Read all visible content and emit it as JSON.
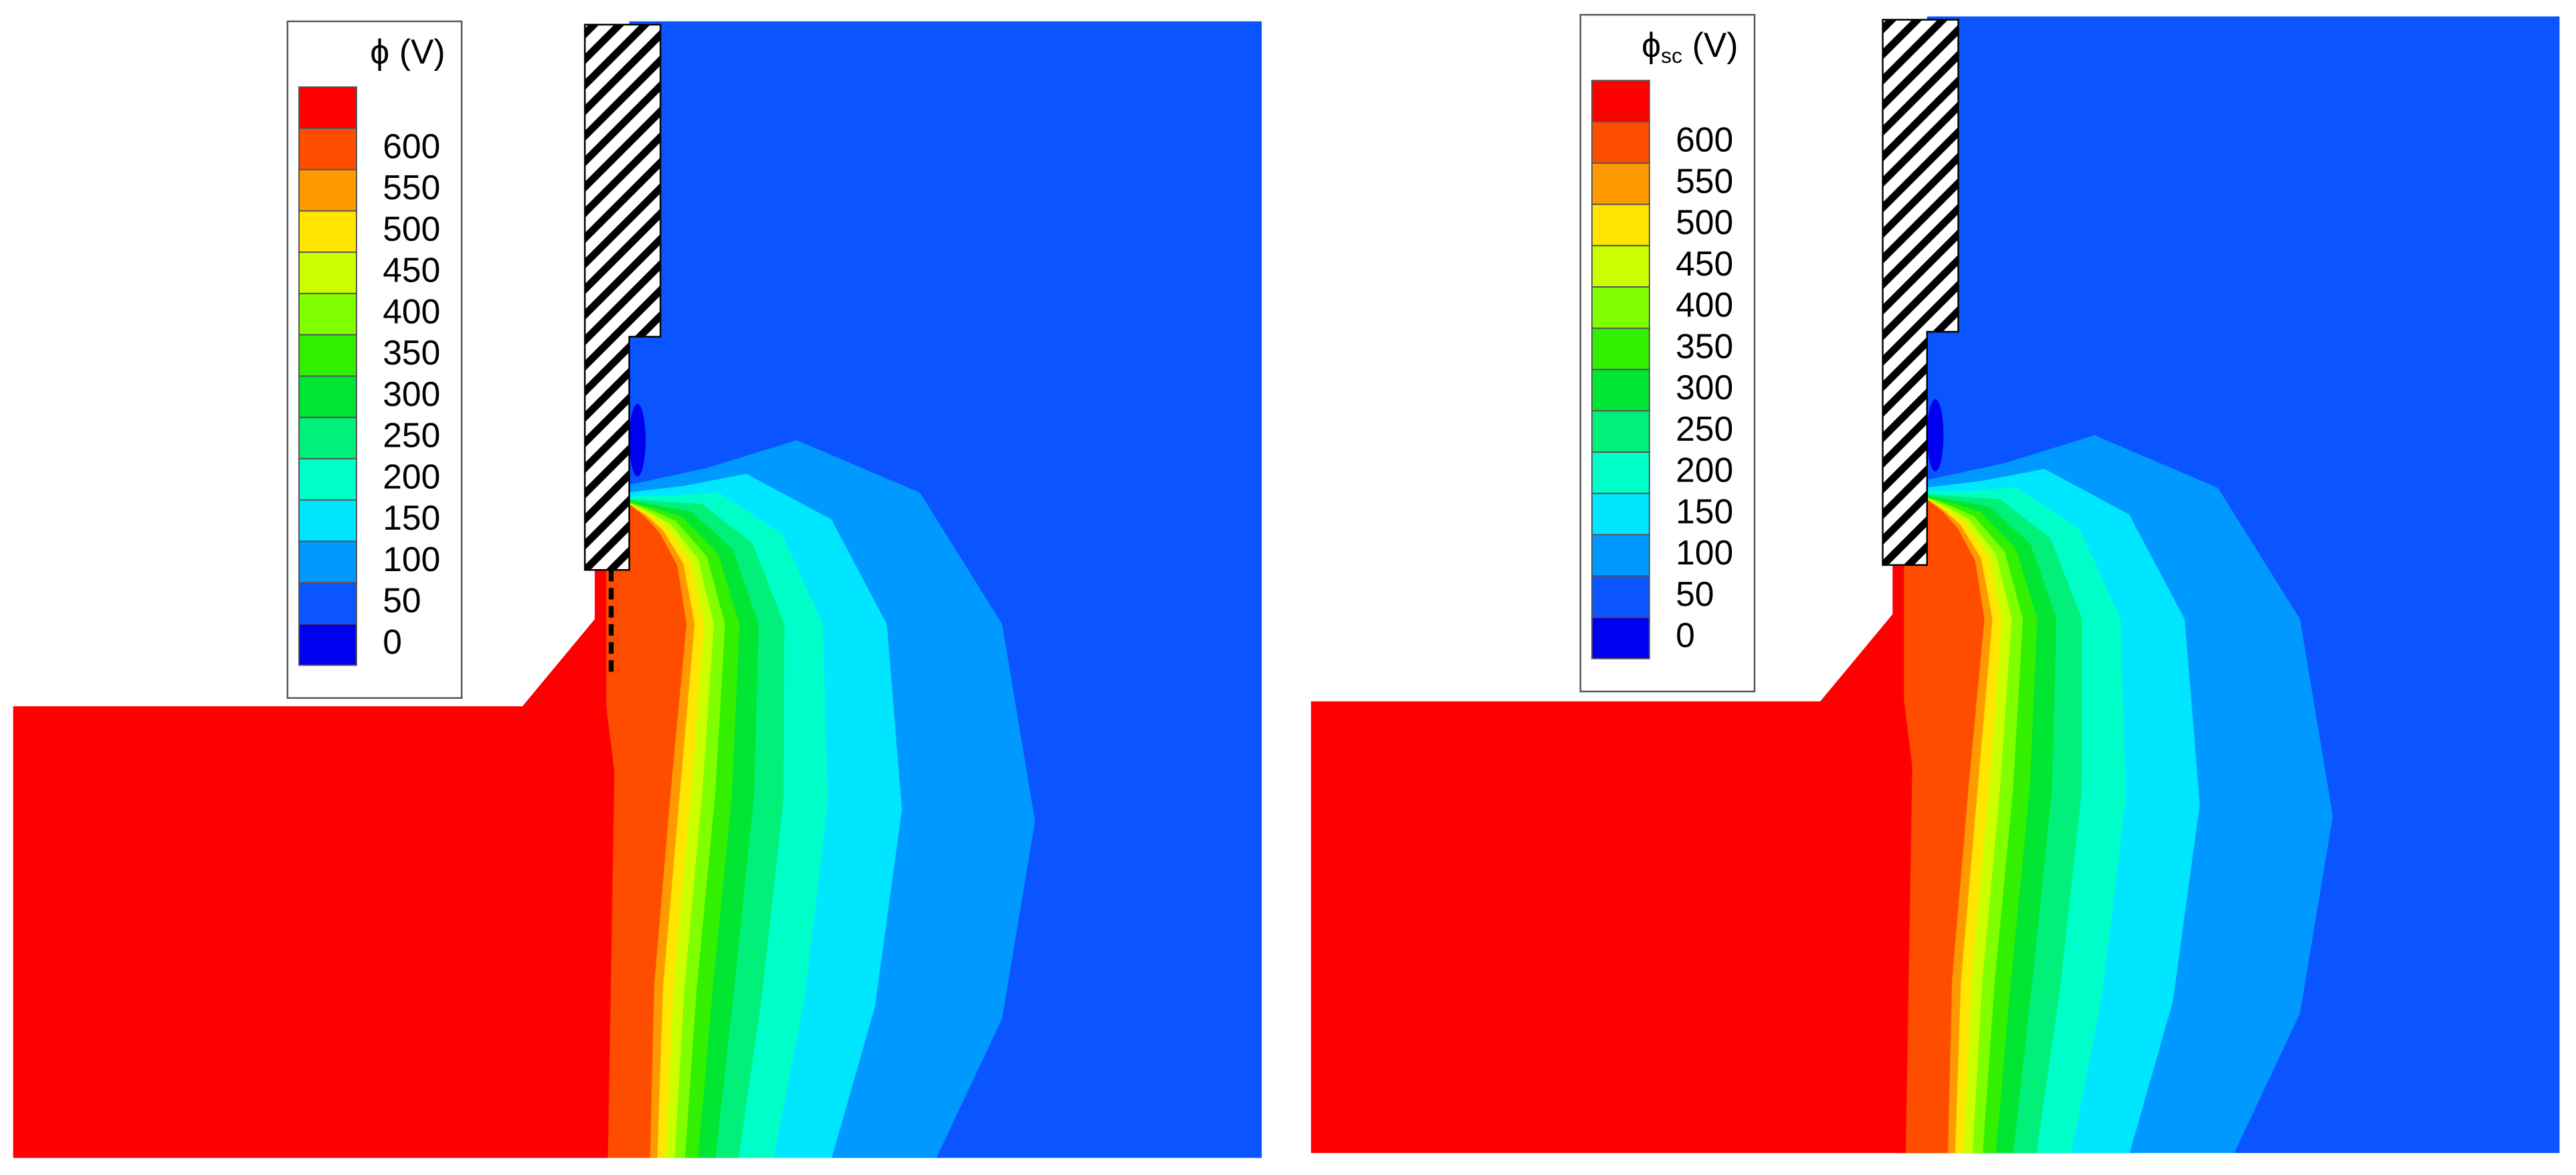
{
  "chart_data": [
    {
      "type": "contour",
      "legend_title": {
        "symbol": "ϕ",
        "unit": "(V)"
      },
      "levels": [
        600,
        550,
        500,
        450,
        400,
        350,
        300,
        250,
        200,
        150,
        100,
        50,
        0
      ],
      "colors": [
        "#ff0000",
        "#ff4d00",
        "#ff9900",
        "#ffe600",
        "#ccff00",
        "#80ff00",
        "#33f000",
        "#00e632",
        "#00f07a",
        "#00ffc8",
        "#00e6ff",
        "#0099ff",
        "#0a55ff",
        "#0000f0"
      ],
      "dashed_boundary": true
    },
    {
      "type": "contour",
      "legend_title": {
        "symbol": "ϕ",
        "subscript": "sc",
        "unit": "(V)"
      },
      "levels": [
        600,
        550,
        500,
        450,
        400,
        350,
        300,
        250,
        200,
        150,
        100,
        50,
        0
      ],
      "colors": [
        "#ff0000",
        "#ff4d00",
        "#ff9900",
        "#ffe600",
        "#ccff00",
        "#80ff00",
        "#33f000",
        "#00e632",
        "#00f07a",
        "#00ffc8",
        "#00e6ff",
        "#0099ff",
        "#0a55ff",
        "#0000f0"
      ],
      "dashed_boundary": false
    }
  ]
}
